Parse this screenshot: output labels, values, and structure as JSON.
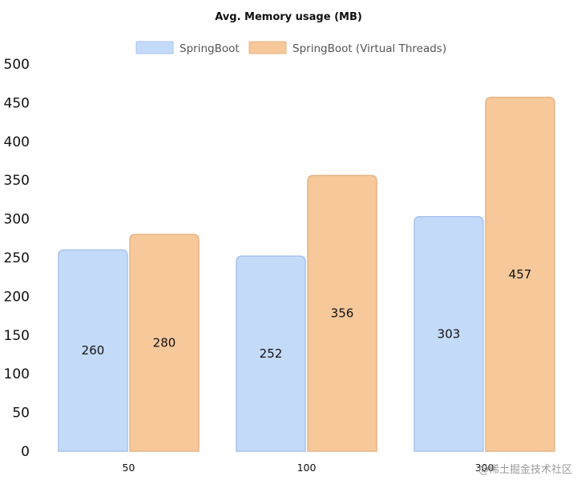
{
  "chart_data": {
    "type": "bar",
    "title": "Avg. Memory usage (MB)",
    "xlabel": "",
    "ylabel": "",
    "categories": [
      "50",
      "100",
      "300"
    ],
    "series": [
      {
        "name": "SpringBoot",
        "values": [
          260,
          252,
          303
        ],
        "color": "#c4daf9",
        "border": "#a9c3ec"
      },
      {
        "name": "SpringBoot (Virtual Threads)",
        "values": [
          280,
          356,
          457
        ],
        "color": "#f6c89a",
        "border": "#e6b486"
      }
    ],
    "ylim": [
      0,
      500
    ],
    "yticks": [
      0,
      50,
      100,
      150,
      200,
      250,
      300,
      350,
      400,
      450,
      500
    ],
    "grid": false,
    "legend_position": "top-center",
    "data_labels": true
  },
  "watermark": "@稀土掘金技术社区"
}
